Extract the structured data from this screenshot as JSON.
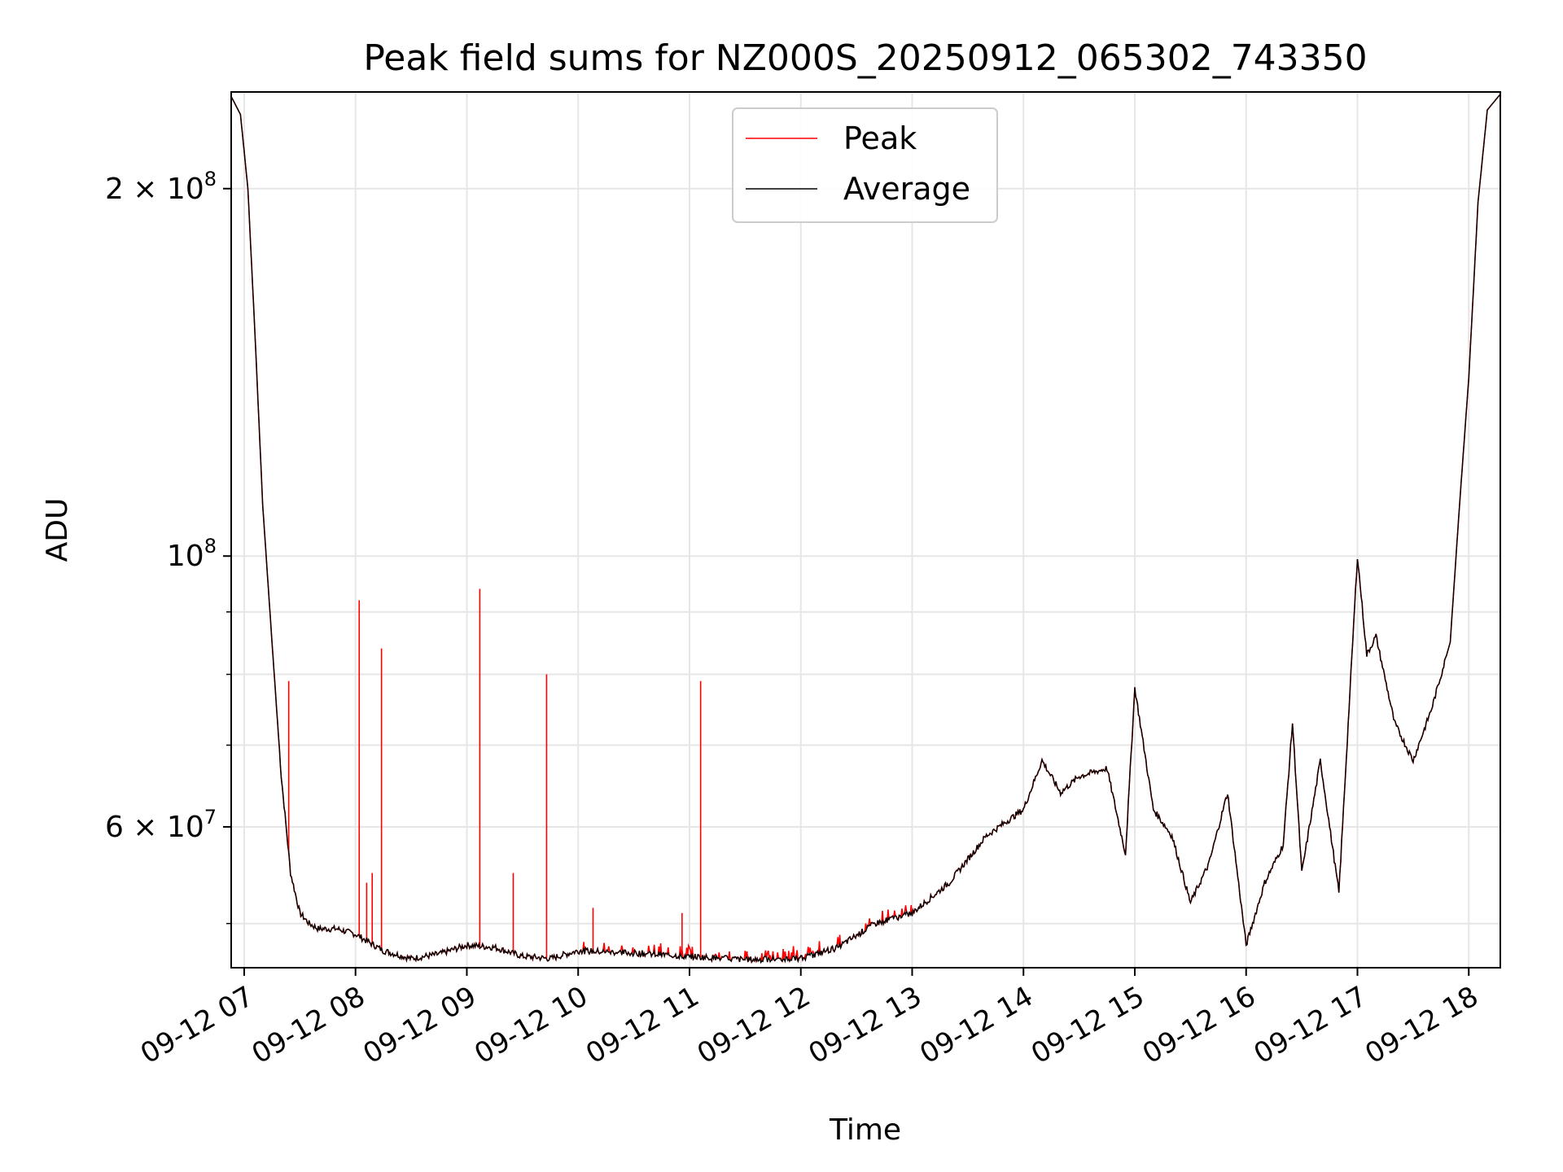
{
  "chart_data": {
    "type": "line",
    "title": "Peak field sums for NZ000S_20250912_065302_743350",
    "xlabel": "Time",
    "ylabel": "ADU",
    "y_scale": "log",
    "grid": true,
    "legend_placement": "upper center",
    "xlim": [
      "09-12 06:53",
      "09-12 18:17"
    ],
    "ylim": [
      46000000,
      240000000
    ],
    "x_ticks": [
      "09-12 07",
      "09-12 08",
      "09-12 09",
      "09-12 10",
      "09-12 11",
      "09-12 12",
      "09-12 13",
      "09-12 14",
      "09-12 15",
      "09-12 16",
      "09-12 17",
      "09-12 18"
    ],
    "y_ticks": [
      {
        "value": 200000000,
        "base": "2 × 10",
        "exp": "8"
      },
      {
        "value": 100000000,
        "base": "10",
        "exp": "8"
      },
      {
        "value": 60000000,
        "base": "6 × 10",
        "exp": "7"
      }
    ],
    "colors": {
      "peak": "#ff0000",
      "average": "#000000"
    },
    "series": [
      {
        "name": "Average",
        "x": [
          "09-12 06:53",
          "09-12 06:58",
          "09-12 07:02",
          "09-12 07:06",
          "09-12 07:10",
          "09-12 07:15",
          "09-12 07:20",
          "09-12 07:25",
          "09-12 07:30",
          "09-12 07:35",
          "09-12 07:40",
          "09-12 07:50",
          "09-12 08:00",
          "09-12 08:15",
          "09-12 08:30",
          "09-12 08:45",
          "09-12 09:00",
          "09-12 09:15",
          "09-12 09:30",
          "09-12 09:45",
          "09-12 10:00",
          "09-12 10:30",
          "09-12 11:00",
          "09-12 11:30",
          "09-12 12:00",
          "09-12 12:20",
          "09-12 12:40",
          "09-12 13:00",
          "09-12 13:20",
          "09-12 13:40",
          "09-12 14:00",
          "09-12 14:10",
          "09-12 14:20",
          "09-12 14:30",
          "09-12 14:45",
          "09-12 14:55",
          "09-12 15:00",
          "09-12 15:10",
          "09-12 15:20",
          "09-12 15:30",
          "09-12 15:40",
          "09-12 15:50",
          "09-12 16:00",
          "09-12 16:10",
          "09-12 16:20",
          "09-12 16:25",
          "09-12 16:30",
          "09-12 16:40",
          "09-12 16:50",
          "09-12 17:00",
          "09-12 17:05",
          "09-12 17:10",
          "09-12 17:20",
          "09-12 17:30",
          "09-12 17:40",
          "09-12 17:50",
          "09-12 17:55",
          "09-12 18:00",
          "09-12 18:05",
          "09-12 18:10",
          "09-12 18:17"
        ],
        "values": [
          238000000,
          230000000,
          200000000,
          150000000,
          110000000,
          85000000,
          66000000,
          55000000,
          51000000,
          50000000,
          49500000,
          49500000,
          49000000,
          47500000,
          46800000,
          47200000,
          48000000,
          47800000,
          47000000,
          46800000,
          47500000,
          47300000,
          47000000,
          46700000,
          46800000,
          47800000,
          50000000,
          51000000,
          54000000,
          59000000,
          62000000,
          68000000,
          64000000,
          66000000,
          67000000,
          57000000,
          78000000,
          62000000,
          59000000,
          52000000,
          56000000,
          64000000,
          48000000,
          54000000,
          58000000,
          73000000,
          55000000,
          68000000,
          53000000,
          100000000,
          83000000,
          86000000,
          73000000,
          68000000,
          75000000,
          85000000,
          110000000,
          140000000,
          195000000,
          232000000,
          239000000
        ]
      },
      {
        "name": "Peak",
        "spikes": [
          {
            "x": "09-12 07:24",
            "value": 79000000
          },
          {
            "x": "09-12 08:02",
            "value": 92000000
          },
          {
            "x": "09-12 08:06",
            "value": 54000000
          },
          {
            "x": "09-12 08:09",
            "value": 55000000
          },
          {
            "x": "09-12 08:14",
            "value": 84000000
          },
          {
            "x": "09-12 09:07",
            "value": 94000000
          },
          {
            "x": "09-12 09:25",
            "value": 55000000
          },
          {
            "x": "09-12 09:43",
            "value": 80000000
          },
          {
            "x": "09-12 10:08",
            "value": 51500000
          },
          {
            "x": "09-12 10:56",
            "value": 51000000
          },
          {
            "x": "09-12 11:06",
            "value": 79000000
          }
        ]
      }
    ]
  }
}
